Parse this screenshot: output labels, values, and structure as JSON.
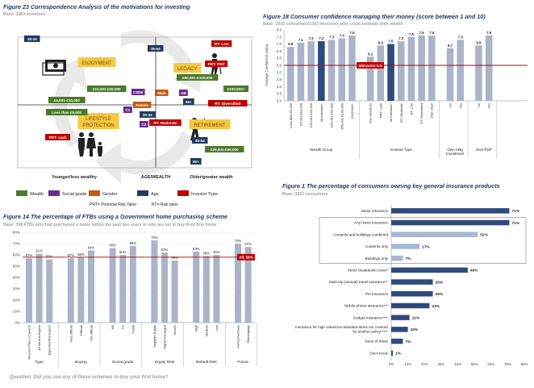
{
  "fig23": {
    "title": "Figure 23   Correspondence Analysis of the motivations for investing",
    "base": "Base: 1563 investors",
    "chart_data": {
      "type": "scatter",
      "axis_left": "Younger/less wealthy",
      "axis_center": "AGE/WEALTH",
      "axis_right": "Older/greater wealth",
      "themes": [
        {
          "label": "ENJOYMENT"
        },
        {
          "label": "LEGACY"
        },
        {
          "label": "LIFESTYLE PROTECTION"
        },
        {
          "label": "RETIREMENT"
        }
      ],
      "points": [
        {
          "label": "18-34",
          "cat": "age"
        },
        {
          "label": "35-54",
          "cat": "age"
        },
        {
          "label": "55+",
          "cat": "age"
        },
        {
          "label": "25-44",
          "cat": "age"
        },
        {
          "label": "45-54",
          "cat": "age"
        },
        {
          "label": "65+",
          "cat": "age"
        },
        {
          "label": "C2DE",
          "cat": "social"
        },
        {
          "label": "AB",
          "cat": "social"
        },
        {
          "label": "C1",
          "cat": "social"
        },
        {
          "label": "C2",
          "cat": "social"
        },
        {
          "label": "Male",
          "cat": "gender"
        },
        {
          "label": "Female",
          "cat": "gender"
        },
        {
          "label": "£50,001-£100,000",
          "cat": "wealth"
        },
        {
          "label": "£100,000+",
          "cat": "wealth"
        },
        {
          "label": "£10,001-£25,000",
          "cat": "wealth"
        },
        {
          "label": "£5,001-£10,000",
          "cat": "wealth"
        },
        {
          "label": "Less than £5,000",
          "cat": "wealth"
        },
        {
          "label": "£25,001-£50,000",
          "cat": "wealth"
        },
        {
          "label": "RT: Low",
          "cat": "investor"
        },
        {
          "label": "PRT: PDP",
          "cat": "investor"
        },
        {
          "label": "RT: Diversified",
          "cat": "investor"
        },
        {
          "label": "RT: Moderate",
          "cat": "investor"
        },
        {
          "label": "PRT: cash",
          "cat": "investor"
        }
      ],
      "legend": [
        {
          "label": "Wealth",
          "color": "#4a7a2a"
        },
        {
          "label": "Social grade",
          "color": "#6b2d8e"
        },
        {
          "label": "Gender",
          "color": "#c45a11"
        },
        {
          "label": "Age",
          "color": "#253a5e"
        },
        {
          "label": "Investor Type",
          "color": "#c00000"
        }
      ],
      "notes": [
        "PRT= Potential Risk Taker",
        "RT= Risk taker"
      ]
    }
  },
  "fig18": {
    "title": "Figure 18   Consumer confidence managing their money (score between 1 and 10)",
    "base": "Base: 2010 consumers/1363 Investors who could estimate their wealth",
    "chart_data": {
      "type": "bar",
      "ylabel": "Average Confidence rating",
      "ylim": [
        3.0,
        8.0
      ],
      "yticks": [
        "3.0",
        "3.5",
        "4.0",
        "4.5",
        "5.0",
        "5.5",
        "6.0",
        "6.5",
        "7.0",
        "7.5",
        "8.0"
      ],
      "midpoint": 5.5,
      "midpoint_label": "Mid-point 5.5",
      "groups": [
        {
          "name": "Wealth Group",
          "categories": [
            "Less than £5,000",
            "£5,001-£10,000",
            "£10,001-£25,000",
            "All investors*",
            "£25,001-£50,000",
            "£50,001-£100,000",
            "£100,000+"
          ],
          "values": [
            6.8,
            7.1,
            7.2,
            7.2,
            7.3,
            7.4,
            7.6
          ],
          "highlight": 3
        },
        {
          "name": "Investor Type",
          "categories": [
            "Non-investors",
            "PRT: cash",
            "All investors*",
            "RT: Moderate",
            "RT: Low",
            "RT: Diversified",
            "PRT: PDP"
          ],
          "values": [
            6.1,
            6.9,
            7.0,
            7.2,
            7.5,
            7.6,
            7.6
          ],
          "highlight": 2
        },
        {
          "name": "Own risky investment",
          "categories": [
            "No",
            "Yes"
          ],
          "values": [
            6.7,
            7.3
          ]
        },
        {
          "name": "Own PDP",
          "categories": [
            "No",
            "Yes"
          ],
          "values": [
            6.9,
            7.6
          ]
        }
      ]
    }
  },
  "fig14": {
    "title": "Figure 14   The percentage of FTBs using a Government home purchasing scheme",
    "base": "Base: 398 FTBs who had purchased a home within the past two years or who are set to buy their first home",
    "question": "Question: Did you use any of these schemes to buy your first home?",
    "chart_data": {
      "type": "bar",
      "ylim": [
        0,
        80
      ],
      "yticks": [
        "0%",
        "10%",
        "20%",
        "30%",
        "40%",
        "50%",
        "60%",
        "70%",
        "80%"
      ],
      "reference": 58,
      "reference_label": "All, 58%",
      "groups": [
        {
          "name": "Type",
          "categories": [
            "Recent FTBs (<2 years)",
            "All set first buyers",
            "Expected first buyers"
          ],
          "values": [
            57,
            61,
            56
          ],
          "labels": [
            "57%",
            "61%",
            "56%"
          ]
        },
        {
          "name": "Buying",
          "categories": [
            "Very difficult",
            "Difficult",
            "Not difficult"
          ],
          "values": [
            57,
            58,
            64
          ],
          "labels": [
            "57%",
            "58%",
            "64%"
          ]
        },
        {
          "name": "Social grade",
          "categories": [
            "AB",
            "C1",
            "C2DE"
          ],
          "values": [
            66,
            60,
            68
          ],
          "labels": [
            "66%",
            "60%",
            "68%"
          ]
        },
        {
          "name": "Equity Risk",
          "categories": [
            "Negative Equity",
            "Highly leveraged",
            "Secure"
          ],
          "values": [
            73,
            62,
            55
          ],
          "labels": [
            "73%",
            "62%",
            "55%"
          ]
        },
        {
          "name": "Default Risk",
          "categories": [
            "High",
            "Medium",
            "Low"
          ],
          "values": [
            63,
            59,
            60
          ],
          "labels": [
            "63%",
            "59%",
            "60%"
          ]
        },
        {
          "name": "Future",
          "categories": [
            "Home Purchase",
            "Remortgage"
          ],
          "values": [
            70,
            67
          ],
          "labels": [
            "70%",
            "67%"
          ]
        }
      ]
    }
  },
  "fig1": {
    "title": "Figure 1      The percentage of consumers owning key general insurance products",
    "base": "Base: 2051 consumers",
    "chart_data": {
      "type": "bar",
      "orientation": "horizontal",
      "xlim": [
        0,
        80
      ],
      "xticks": [
        "0%",
        "10%",
        "20%",
        "30%",
        "40%",
        "50%",
        "60%",
        "70%",
        "80%"
      ],
      "items": [
        {
          "label": "Motor insurance",
          "value": 71,
          "text": "71%",
          "style": "dark"
        },
        {
          "label": "Any home insurance",
          "value": 71,
          "text": "71%",
          "style": "dark",
          "boxed": true
        },
        {
          "label": "Contents and buildings combined",
          "value": 52,
          "text": "52%",
          "style": "light",
          "boxed": true
        },
        {
          "label": "Contents only",
          "value": 17,
          "text": "17%",
          "style": "light",
          "boxed": true
        },
        {
          "label": "Buildings only",
          "value": 7,
          "text": "7%",
          "style": "light",
          "boxed": true
        },
        {
          "label": "Motor breakdown cover*",
          "value": 46,
          "text": "46%",
          "style": "dark"
        },
        {
          "label": "Multi-trip (annual) travel insurance**",
          "value": 25,
          "text": "25%",
          "style": "dark"
        },
        {
          "label": "Pet insurance",
          "value": 25,
          "text": "25%",
          "style": "dark"
        },
        {
          "label": "Mobile phone insurance***",
          "value": 23,
          "text": "23%",
          "style": "dark"
        },
        {
          "label": "Gadget insurance****",
          "value": 11,
          "text": "11%",
          "style": "dark"
        },
        {
          "label": "Insurance for high value/non-standard items not covered",
          "label2": "by another policy*****",
          "value": 10,
          "text": "10%",
          "style": "dark"
        },
        {
          "label": "None of these",
          "value": 7,
          "text": "7%",
          "style": "dark"
        },
        {
          "label": "Don't know",
          "value": 1,
          "text": "1%",
          "style": "dark"
        }
      ]
    }
  },
  "colors": {
    "navy": "#2e4a7d",
    "bar_light": "#a9b7d4",
    "bar_grey": "#aab4c8",
    "red": "#c00000",
    "title": "#1f3864"
  },
  "icons": [
    "money-icon",
    "elderly-icon",
    "family-icon",
    "golfer-icon"
  ]
}
